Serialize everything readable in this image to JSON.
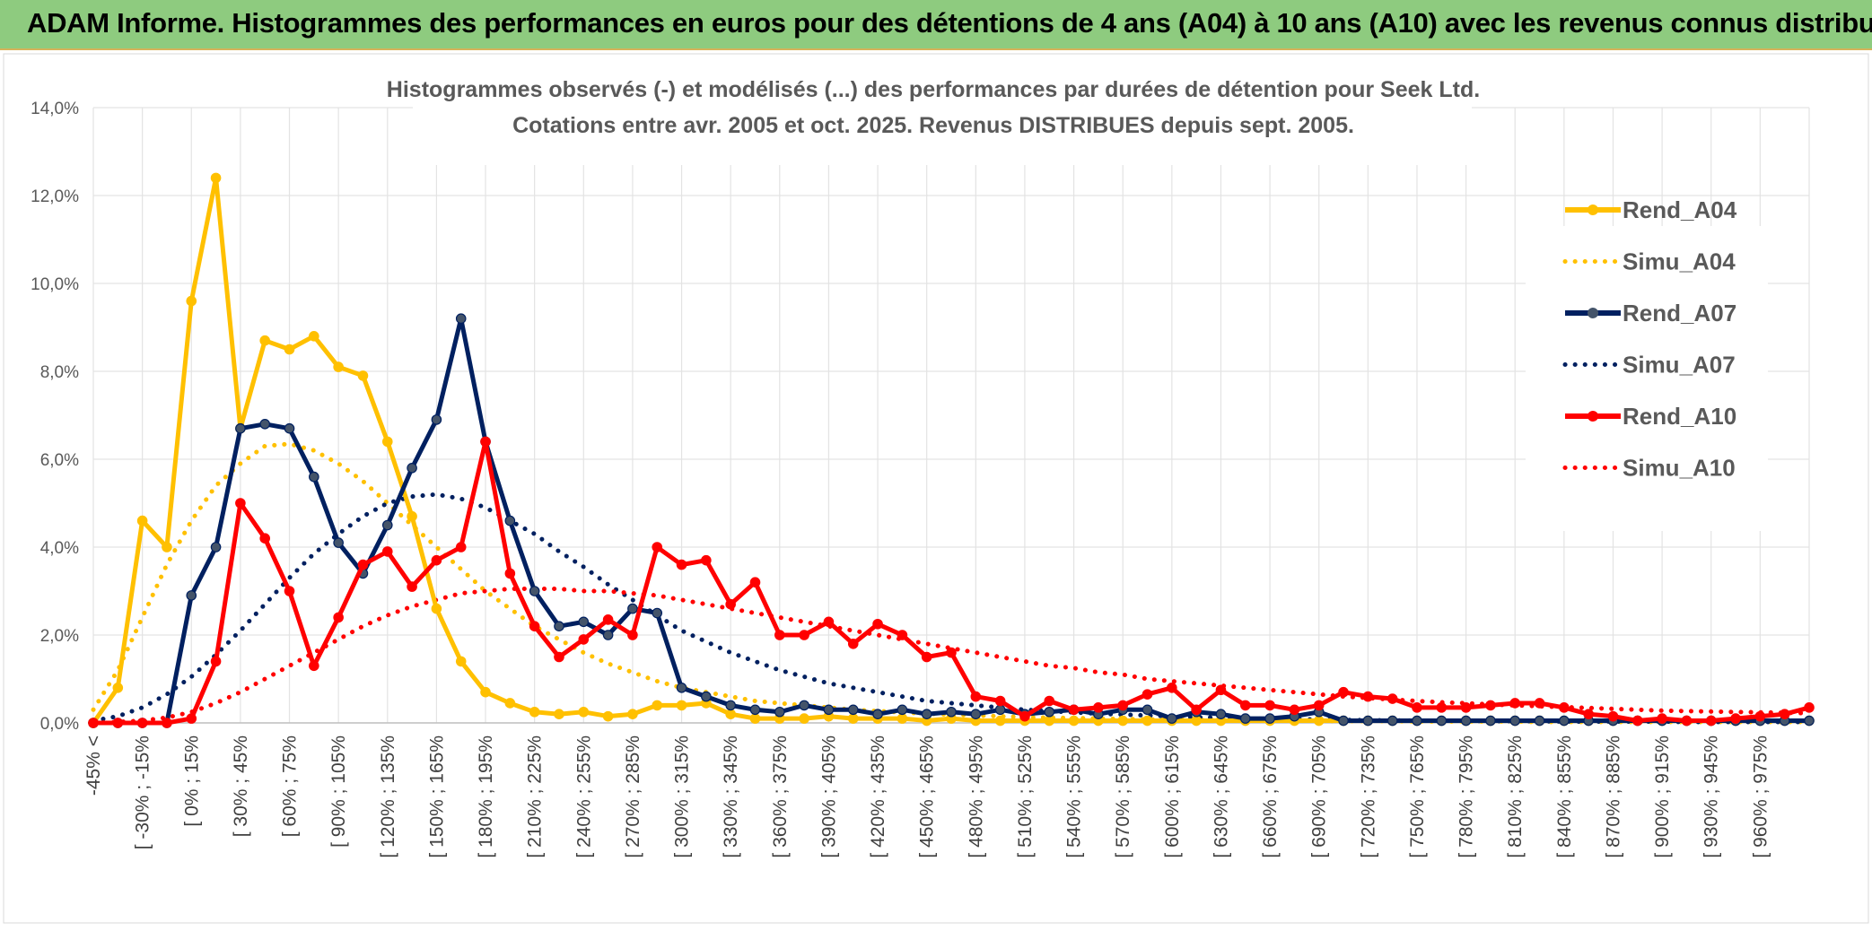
{
  "banner": {
    "title": "ADAM Informe. Histogrammes des performances en euros pour des détentions de 4 ans (A04) à 10 ans (A10) avec les revenus connus distribués",
    "background": "#8ecb7f"
  },
  "chart_data": {
    "type": "line",
    "title": "Histogrammes observés (-) et modélisés (...) des performances par durées de détention pour Seek Ltd.",
    "subtitle": "Cotations entre avr. 2005 et oct. 2025. Revenus DISTRIBUES depuis sept. 2005.",
    "xlabel": "",
    "ylabel": "",
    "ylim": [
      0,
      14
    ],
    "y_ticks": [
      "0,0%",
      "2,0%",
      "4,0%",
      "6,0%",
      "8,0%",
      "10,0%",
      "12,0%",
      "14,0%"
    ],
    "grid": true,
    "legend_position": "right",
    "x_tick_labels": [
      "-45% <",
      "[ -30% ; -15%",
      "[ 0% ; 15%",
      "[ 30% ; 45%",
      "[ 60% ; 75%",
      "[ 90% ; 105%",
      "[ 120% ; 135%",
      "[ 150% ; 165%",
      "[ 180% ; 195%",
      "[ 210% ; 225%",
      "[ 240% ; 255%",
      "[ 270% ; 285%",
      "[ 300% ; 315%",
      "[ 330% ; 345%",
      "[ 360% ; 375%",
      "[ 390% ; 405%",
      "[ 420% ; 435%",
      "[ 450% ; 465%",
      "[ 480% ; 495%",
      "[ 510% ; 525%",
      "[ 540% ; 555%",
      "[ 570% ; 585%",
      "[ 600% ; 615%",
      "[ 630% ; 645%",
      "[ 660% ; 675%",
      "[ 690% ; 705%",
      "[ 720% ; 735%",
      "[ 750% ; 765%",
      "[ 780% ; 795%",
      "[ 810% ; 825%",
      "[ 840% ; 855%",
      "[ 870% ; 885%",
      "[ 900% ; 915%",
      "[ 930% ; 945%",
      "[ 960% ; 975%"
    ],
    "series": [
      {
        "name": "Rend_A04",
        "color": "#FFC000",
        "style": "solid",
        "markers": true,
        "values": [
          0.0,
          0.8,
          4.6,
          4.0,
          9.6,
          12.4,
          6.7,
          8.7,
          8.5,
          8.8,
          8.1,
          7.9,
          6.4,
          4.7,
          2.6,
          1.4,
          0.7,
          0.45,
          0.25,
          0.2,
          0.25,
          0.15,
          0.2,
          0.4,
          0.4,
          0.45,
          0.2,
          0.1,
          0.1,
          0.1,
          0.15,
          0.1,
          0.1,
          0.1,
          0.05,
          0.1,
          0.05,
          0.05,
          0.05,
          0.05,
          0.05,
          0.05,
          0.05,
          0.05,
          0.05,
          0.05,
          0.05,
          0.05,
          0.05,
          0.05,
          0.05,
          0.05,
          0.05,
          0.05,
          0.05,
          0.05,
          0.05,
          0.05,
          0.05,
          0.05,
          0.05,
          0.05,
          0.05,
          0.05,
          0.05,
          0.05,
          0.05,
          0.05,
          0.05,
          0.05,
          0.05
        ]
      },
      {
        "name": "Simu_A04",
        "color": "#FFC000",
        "style": "dotted",
        "markers": false,
        "values": [
          0.3,
          1.2,
          2.4,
          3.6,
          4.6,
          5.4,
          5.9,
          6.3,
          6.35,
          6.2,
          5.9,
          5.5,
          5.0,
          4.5,
          4.0,
          3.5,
          3.0,
          2.6,
          2.2,
          1.9,
          1.6,
          1.35,
          1.15,
          0.95,
          0.8,
          0.7,
          0.6,
          0.5,
          0.45,
          0.4,
          0.35,
          0.3,
          0.27,
          0.24,
          0.21,
          0.19,
          0.17,
          0.15,
          0.13,
          0.12,
          0.11,
          0.1,
          0.09,
          0.08,
          0.07,
          0.07,
          0.06,
          0.06,
          0.05,
          0.05,
          0.05,
          0.04,
          0.04,
          0.04,
          0.03,
          0.03,
          0.03,
          0.03,
          0.03,
          0.02,
          0.02,
          0.02,
          0.02,
          0.02,
          0.02,
          0.02,
          0.02,
          0.02,
          0.02,
          0.02,
          0.02
        ]
      },
      {
        "name": "Rend_A07",
        "color": "#002060",
        "style": "solid",
        "markers": true,
        "values": [
          0.0,
          0.0,
          0.0,
          0.0,
          2.9,
          4.0,
          6.7,
          6.8,
          6.7,
          5.6,
          4.1,
          3.4,
          4.5,
          5.8,
          6.9,
          9.2,
          6.4,
          4.6,
          3.0,
          2.2,
          2.3,
          2.0,
          2.6,
          2.5,
          0.8,
          0.6,
          0.4,
          0.3,
          0.25,
          0.4,
          0.3,
          0.3,
          0.2,
          0.3,
          0.2,
          0.25,
          0.2,
          0.3,
          0.2,
          0.25,
          0.3,
          0.2,
          0.3,
          0.3,
          0.1,
          0.25,
          0.2,
          0.1,
          0.1,
          0.15,
          0.25,
          0.05,
          0.05,
          0.05,
          0.05,
          0.05,
          0.05,
          0.05,
          0.05,
          0.05,
          0.05,
          0.05,
          0.05,
          0.05,
          0.05,
          0.05,
          0.05,
          0.05,
          0.05,
          0.05,
          0.05
        ]
      },
      {
        "name": "Simu_A07",
        "color": "#002060",
        "style": "dotted",
        "markers": false,
        "values": [
          0.05,
          0.15,
          0.35,
          0.65,
          1.05,
          1.55,
          2.1,
          2.7,
          3.3,
          3.85,
          4.3,
          4.7,
          5.0,
          5.15,
          5.2,
          5.1,
          4.9,
          4.6,
          4.3,
          3.9,
          3.55,
          3.15,
          2.8,
          2.45,
          2.1,
          1.85,
          1.6,
          1.4,
          1.2,
          1.05,
          0.9,
          0.8,
          0.7,
          0.6,
          0.5,
          0.45,
          0.4,
          0.35,
          0.3,
          0.27,
          0.24,
          0.21,
          0.19,
          0.17,
          0.15,
          0.13,
          0.12,
          0.1,
          0.09,
          0.08,
          0.08,
          0.07,
          0.06,
          0.06,
          0.05,
          0.05,
          0.05,
          0.04,
          0.04,
          0.04,
          0.03,
          0.03,
          0.03,
          0.03,
          0.03,
          0.02,
          0.02,
          0.02,
          0.02,
          0.02,
          0.02
        ]
      },
      {
        "name": "Rend_A10",
        "color": "#FF0000",
        "style": "solid",
        "markers": true,
        "values": [
          0.0,
          0.0,
          0.0,
          0.0,
          0.1,
          1.4,
          5.0,
          4.2,
          3.0,
          1.3,
          2.4,
          3.6,
          3.9,
          3.1,
          3.7,
          4.0,
          6.4,
          3.4,
          2.2,
          1.5,
          1.9,
          2.35,
          2.0,
          4.0,
          3.6,
          3.7,
          2.7,
          3.2,
          2.0,
          2.0,
          2.3,
          1.8,
          2.25,
          2.0,
          1.5,
          1.6,
          0.6,
          0.5,
          0.15,
          0.5,
          0.3,
          0.35,
          0.4,
          0.65,
          0.8,
          0.3,
          0.75,
          0.4,
          0.4,
          0.3,
          0.4,
          0.7,
          0.6,
          0.55,
          0.35,
          0.35,
          0.35,
          0.4,
          0.45,
          0.45,
          0.35,
          0.2,
          0.15,
          0.05,
          0.1,
          0.05,
          0.05,
          0.1,
          0.15,
          0.2,
          0.35
        ]
      },
      {
        "name": "Simu_A10",
        "color": "#FF0000",
        "style": "dotted",
        "markers": false,
        "values": [
          0.0,
          0.02,
          0.05,
          0.12,
          0.25,
          0.45,
          0.7,
          1.0,
          1.3,
          1.6,
          1.9,
          2.2,
          2.45,
          2.65,
          2.8,
          2.95,
          3.0,
          3.05,
          3.05,
          3.05,
          3.0,
          3.0,
          2.95,
          2.9,
          2.8,
          2.7,
          2.6,
          2.5,
          2.4,
          2.3,
          2.2,
          2.1,
          2.0,
          1.9,
          1.8,
          1.7,
          1.6,
          1.5,
          1.4,
          1.3,
          1.25,
          1.15,
          1.1,
          1.0,
          0.95,
          0.9,
          0.85,
          0.8,
          0.75,
          0.7,
          0.65,
          0.6,
          0.57,
          0.53,
          0.5,
          0.47,
          0.45,
          0.42,
          0.4,
          0.38,
          0.36,
          0.34,
          0.32,
          0.3,
          0.28,
          0.27,
          0.26,
          0.25,
          0.24,
          0.23,
          0.22
        ]
      }
    ]
  }
}
